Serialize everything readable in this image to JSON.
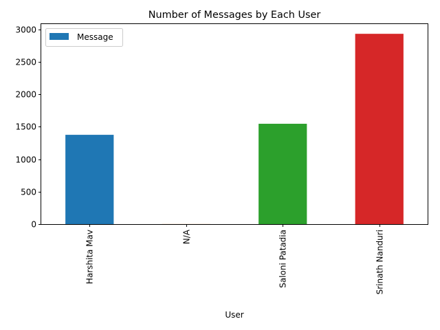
{
  "chart_data": {
    "type": "bar",
    "title": "Number of Messages by Each User",
    "xlabel": "User",
    "ylabel": "",
    "categories": [
      "Harshita Mav",
      "N/A",
      "Saloni Patadia",
      "Srinath Nanduri"
    ],
    "series": [
      {
        "name": "Message",
        "values": [
          1375,
          1,
          1545,
          2930
        ]
      }
    ],
    "bar_colors": [
      "#1f77b4",
      "#ff7f0e",
      "#2ca02c",
      "#d62728"
    ],
    "legend_color": "#1f77b4",
    "ylim": [
      0,
      3080
    ],
    "yticks": [
      0,
      500,
      1000,
      1500,
      2000,
      2500,
      3000
    ],
    "legend_position": "upper-left",
    "grid": false
  }
}
